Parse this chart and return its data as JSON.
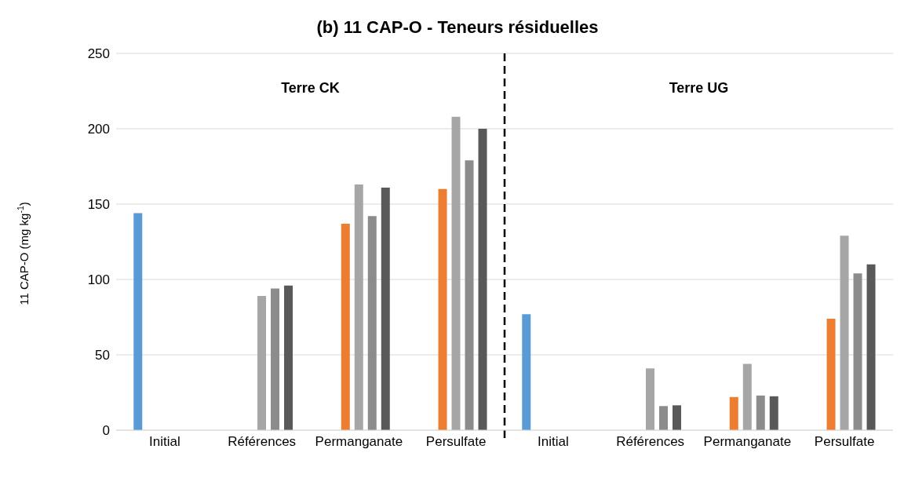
{
  "chart_data": {
    "type": "bar",
    "title": "(b) 11 CAP-O - Teneurs résiduelles",
    "ylabel": "11 CAP-O (mg kg$^{-1}$)",
    "categories": [
      "Initial",
      "Références",
      "Permanganate",
      "Persulfate",
      "Initial",
      "Références",
      "Permanganate",
      "Persulfate"
    ],
    "series": [
      {
        "color": "#5b9bd5",
        "values": [
          144,
          null,
          null,
          null,
          77,
          null,
          null,
          null
        ]
      },
      {
        "color": "#ed7d31",
        "values": [
          null,
          null,
          137,
          160,
          null,
          null,
          22,
          74
        ]
      },
      {
        "color": "#a6a6a6",
        "values": [
          null,
          89,
          163,
          208,
          null,
          41,
          44,
          129
        ]
      },
      {
        "color": "#8c8c8c",
        "values": [
          null,
          94,
          142,
          179,
          null,
          16,
          23,
          104
        ]
      },
      {
        "color": "#595959",
        "values": [
          null,
          96,
          161,
          200,
          null,
          16.5,
          22.5,
          110
        ]
      }
    ],
    "ylim": [
      0,
      250
    ],
    "yticks": [
      0,
      50,
      100,
      150,
      200,
      250
    ],
    "grid": "y",
    "annotations": [
      "Terre CK",
      "Terre UG"
    ]
  }
}
